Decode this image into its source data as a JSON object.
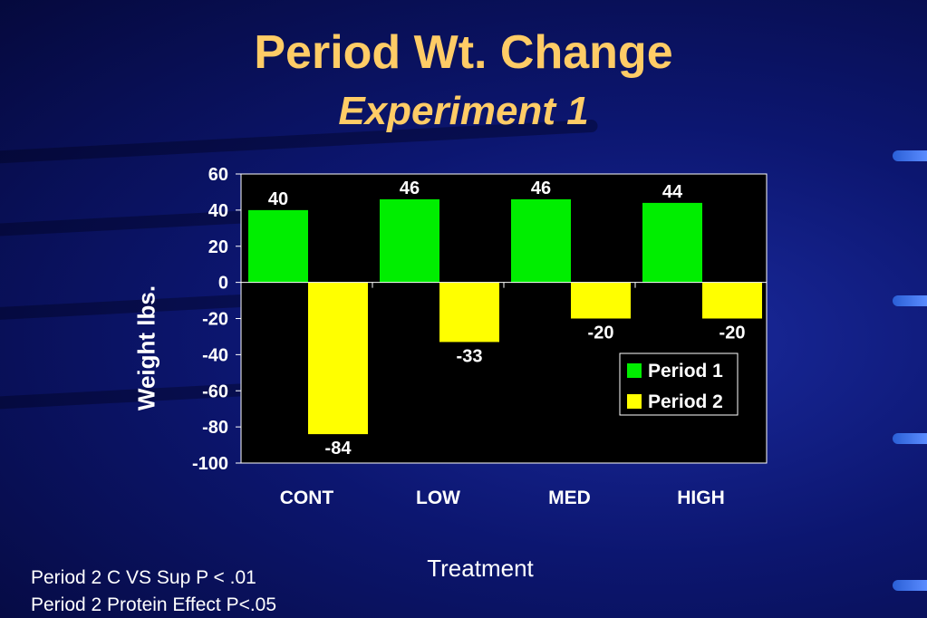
{
  "slide": {
    "title": "Period Wt. Change",
    "subtitle": "Experiment 1",
    "notes": [
      "Period 2 C VS Sup P < .01",
      "Period 2 Protein Effect P<.05"
    ]
  },
  "colors": {
    "period1": "#00ee00",
    "period2": "#ffff00",
    "plot_bg": "#000000",
    "title": "#ffcc66"
  },
  "chart_data": {
    "type": "bar",
    "xlabel": "Treatment",
    "ylabel": "Weight lbs.",
    "categories": [
      "CONT",
      "LOW",
      "MED",
      "HIGH"
    ],
    "ylim": [
      -100,
      60
    ],
    "yticks": [
      60,
      40,
      20,
      0,
      -20,
      -40,
      -60,
      -80,
      -100
    ],
    "legend_position": "right",
    "series": [
      {
        "name": "Period 1",
        "values": [
          40,
          46,
          46,
          44
        ],
        "labels": [
          "40",
          "46",
          "46",
          "44"
        ]
      },
      {
        "name": "Period 2",
        "values": [
          -84,
          -33,
          -20,
          -20
        ],
        "labels": [
          "-84",
          "-33",
          "-20",
          "-20"
        ]
      }
    ]
  }
}
